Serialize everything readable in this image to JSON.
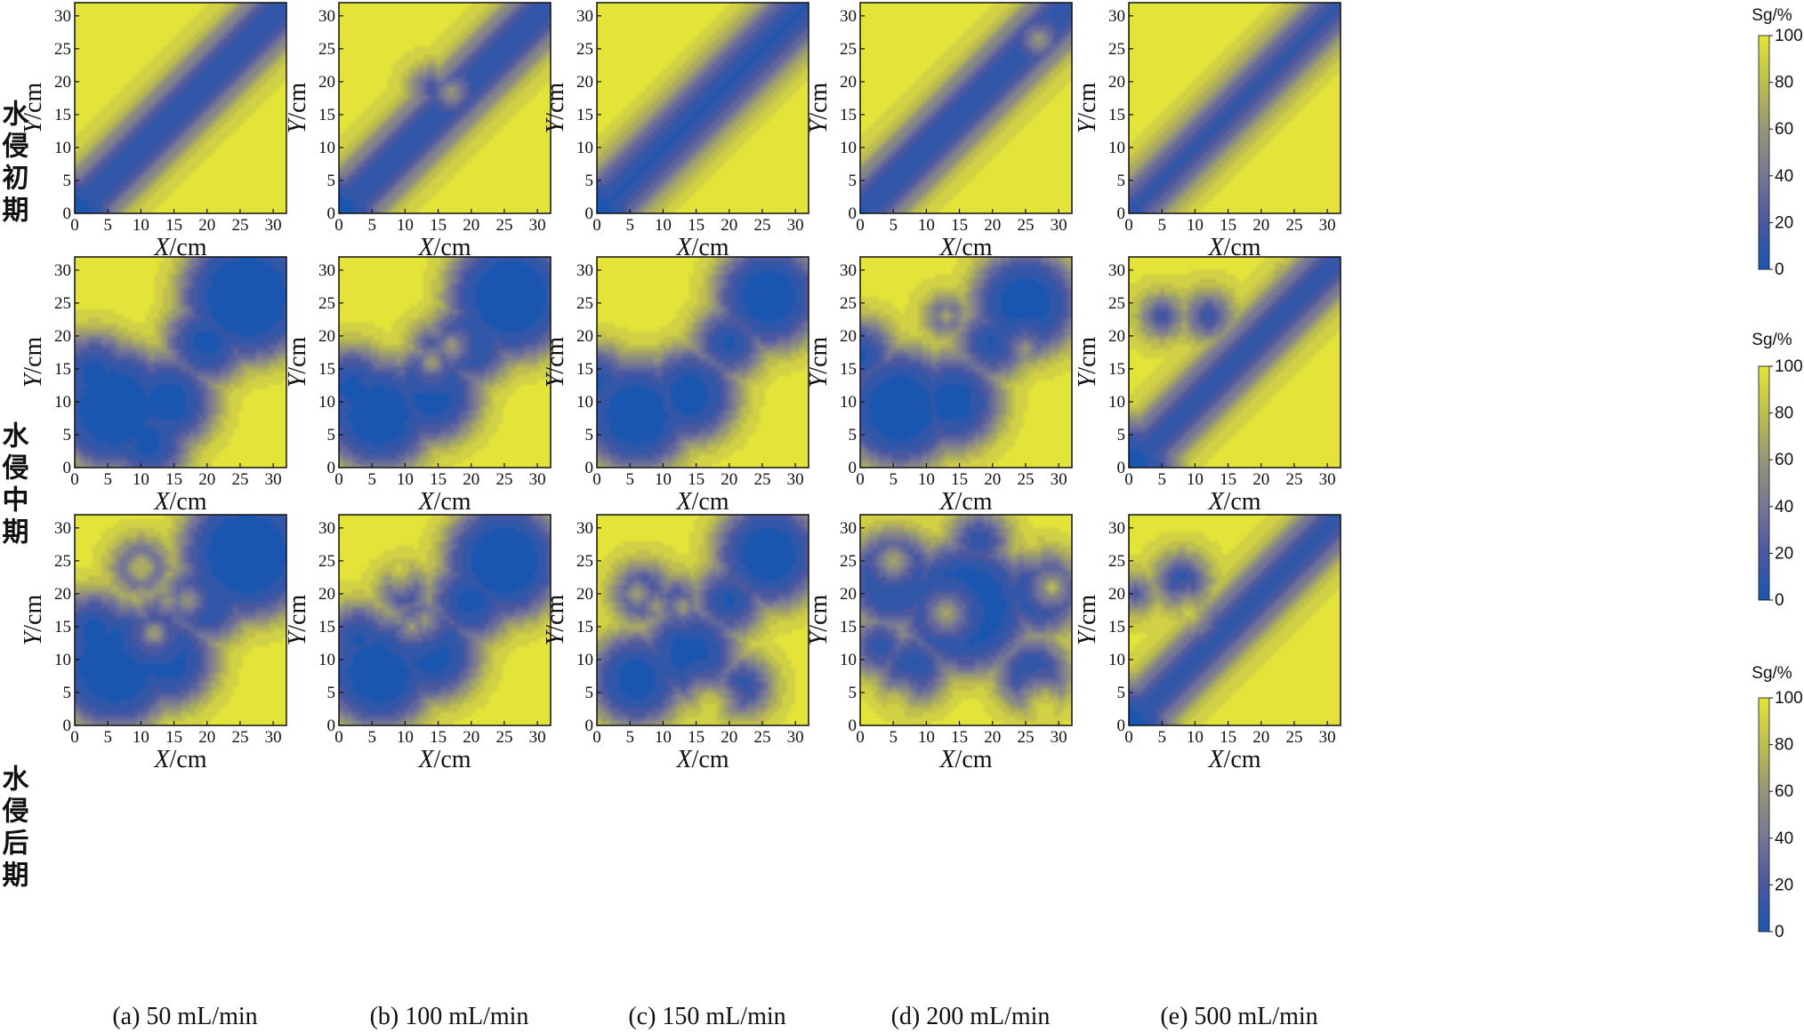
{
  "row_labels": [
    "水侵初期",
    "水侵中期",
    "水侵后期"
  ],
  "col_captions": [
    "(a) 50 mL/min",
    "(b) 100 mL/min",
    "(c) 150 mL/min",
    "(d) 200 mL/min",
    "(e) 500 mL/min"
  ],
  "colors": {
    "low": "#1a56b0",
    "high": "#e3e33a"
  },
  "chart_data": {
    "type": "heatmap",
    "x_axis": {
      "label_var": "X",
      "label_unit": "/cm",
      "range": [
        0,
        32
      ],
      "ticks": [
        0,
        5,
        10,
        15,
        20,
        25,
        30
      ]
    },
    "y_axis": {
      "label_var": "Y",
      "label_unit": "/cm",
      "range": [
        0,
        32
      ],
      "ticks": [
        0,
        5,
        10,
        15,
        20,
        25,
        30
      ]
    },
    "colorbar": {
      "title": "Sg/%",
      "range": [
        0,
        100
      ],
      "ticks": [
        0,
        20,
        40,
        60,
        80,
        100
      ]
    },
    "panels": [
      [
        {
          "mode": "diag",
          "w": 4.0,
          "sources": [
            [
              0,
              0,
              6.5
            ]
          ],
          "y_sinks": [
            [
              5,
              22,
              3.5
            ],
            [
              20,
              6,
              3
            ]
          ]
        },
        {
          "mode": "diag",
          "w": 4.0,
          "sources": [
            [
              0,
              0,
              6.5
            ],
            [
              14,
              19,
              2.5
            ]
          ],
          "y_sinks": [
            [
              17,
              18.5,
              0.8
            ],
            [
              24,
              8,
              3
            ]
          ]
        },
        {
          "mode": "diag",
          "w": 4.2,
          "sources": [
            [
              0,
              0,
              6.5
            ]
          ],
          "y_sinks": [
            [
              6,
              22,
              3
            ]
          ]
        },
        {
          "mode": "diag",
          "w": 4.0,
          "sources": [
            [
              0,
              0,
              5
            ],
            [
              27,
              27,
              3
            ]
          ],
          "y_sinks": [
            [
              27,
              26.5,
              0.8
            ],
            [
              8,
              25,
              3
            ]
          ]
        },
        {
          "mode": "diag",
          "w": 3.3,
          "sources": [
            [
              0,
              0,
              4.5
            ]
          ],
          "y_sinks": []
        }
      ],
      [
        {
          "mode": "free",
          "sources": [
            [
              26,
              26,
              10
            ],
            [
              6,
              9,
              9.5
            ],
            [
              14,
              10,
              7
            ],
            [
              20,
              19,
              6
            ],
            [
              3,
              14,
              6
            ],
            [
              11,
              4,
              6
            ]
          ],
          "y_sinks": [
            [
              12,
              28,
              4
            ]
          ]
        },
        {
          "mode": "free",
          "sources": [
            [
              26,
              26,
              9.5
            ],
            [
              6,
              8,
              8.5
            ],
            [
              14,
              11,
              7
            ],
            [
              20,
              19,
              6
            ],
            [
              2,
              12,
              6
            ],
            [
              14,
              19,
              2.2
            ]
          ],
          "y_sinks": [
            [
              17,
              18.5,
              0.9
            ],
            [
              14,
              16,
              0.8
            ],
            [
              8,
              26,
              4
            ]
          ]
        },
        {
          "mode": "free",
          "sources": [
            [
              26,
              26,
              8
            ],
            [
              6,
              8,
              8.5
            ],
            [
              14,
              11,
              7
            ],
            [
              20,
              19,
              5
            ],
            [
              17,
              14,
              3
            ],
            [
              0,
              13,
              5
            ]
          ],
          "y_sinks": [
            [
              8,
              26,
              5
            ]
          ]
        },
        {
          "mode": "free",
          "sources": [
            [
              25,
              25,
              8
            ],
            [
              6,
              9,
              9
            ],
            [
              14,
              10,
              7
            ],
            [
              20,
              19,
              5
            ],
            [
              0,
              17,
              5
            ],
            [
              13,
              23,
              2.2
            ]
          ],
          "y_sinks": [
            [
              13,
              23,
              1.2
            ],
            [
              14,
              19.5,
              0.9
            ],
            [
              25,
              18,
              0.8
            ],
            [
              8,
              28,
              4
            ]
          ]
        },
        {
          "mode": "diag",
          "w": 3.6,
          "sources": [
            [
              0,
              0,
              7
            ],
            [
              12,
              23,
              3
            ],
            [
              5,
              23,
              2.5
            ],
            [
              26,
              27,
              3
            ]
          ],
          "y_sinks": []
        }
      ],
      [
        {
          "mode": "free",
          "sources": [
            [
              26,
              26,
              10
            ],
            [
              6,
              9,
              9.5
            ],
            [
              14,
              10,
              7
            ],
            [
              20,
              19,
              6
            ],
            [
              3,
              14,
              6
            ],
            [
              10,
              24,
              3.5
            ],
            [
              13,
              16,
              3.5
            ]
          ],
          "y_sinks": [
            [
              10,
              24,
              2
            ],
            [
              10,
              20,
              0.8
            ],
            [
              14,
              19,
              0.9
            ],
            [
              17,
              19,
              0.8
            ],
            [
              12,
              14,
              0.8
            ]
          ]
        },
        {
          "mode": "free",
          "sources": [
            [
              25,
              25,
              9
            ],
            [
              6,
              8,
              8.5
            ],
            [
              14,
              11,
              7
            ],
            [
              20,
              19,
              6
            ],
            [
              3,
              13,
              5
            ],
            [
              10,
              20,
              3
            ],
            [
              12,
              16,
              3
            ]
          ],
          "y_sinks": [
            [
              11,
              15,
              0.9
            ],
            [
              13,
              16,
              0.9
            ],
            [
              9,
              24,
              3
            ]
          ]
        },
        {
          "mode": "free",
          "sources": [
            [
              26,
              26,
              8
            ],
            [
              6,
              7,
              7
            ],
            [
              14,
              11,
              7
            ],
            [
              20,
              19,
              5
            ],
            [
              17,
              14,
              3
            ],
            [
              22,
              6,
              4
            ],
            [
              7,
              20,
              4
            ],
            [
              12,
              19,
              3
            ]
          ],
          "y_sinks": [
            [
              6,
              20,
              0.9
            ],
            [
              9,
              18,
              0.9
            ],
            [
              13,
              18,
              0.8
            ],
            [
              17,
              2.5,
              3.5
            ],
            [
              5,
              28,
              4
            ]
          ]
        },
        {
          "mode": "free",
          "sources": [
            [
              16,
              18,
              10
            ],
            [
              5,
              22,
              7
            ],
            [
              27,
              20,
              6
            ],
            [
              26,
              8,
              5
            ],
            [
              8,
              9,
              5
            ],
            [
              18,
              28,
              4
            ],
            [
              3,
              12,
              4
            ]
          ],
          "y_sinks": [
            [
              5,
              25,
              1.4
            ],
            [
              13,
              17,
              1.5
            ],
            [
              29,
              21,
              1.6
            ],
            [
              17,
              2,
              5
            ],
            [
              26,
              28,
              3
            ],
            [
              28,
              2,
              4
            ],
            [
              5,
              2,
              4
            ]
          ]
        },
        {
          "mode": "diag",
          "w": 3.6,
          "sources": [
            [
              0,
              0,
              6.5
            ],
            [
              8,
              22,
              3.5
            ],
            [
              1,
              20,
              2
            ],
            [
              14,
              16,
              2.5
            ]
          ],
          "y_sinks": [
            [
              9,
              17,
              2.5
            ]
          ]
        }
      ]
    ]
  }
}
